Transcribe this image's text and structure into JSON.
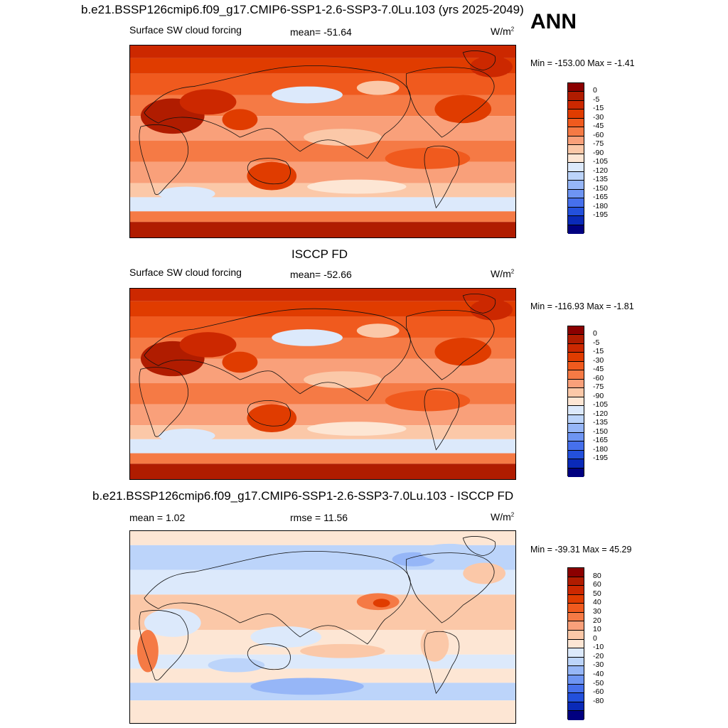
{
  "header": {
    "title": "b.e21.BSSP126cmip6.f09_g17.CMIP6-SSP1-2.6-SSP3-7.0Lu.103 (yrs 2025-2049)",
    "season": "ANN"
  },
  "panels": [
    {
      "title": "",
      "left_label": "Surface SW cloud forcing",
      "center_label": "mean= -51.64",
      "units": "W/m",
      "units_sup": "2",
      "minmax": "Min = -153.00 Max =  -1.41",
      "scale": "abs"
    },
    {
      "title": "ISCCP FD",
      "left_label": "Surface SW cloud forcing",
      "center_label": "mean= -52.66",
      "units": "W/m",
      "units_sup": "2",
      "minmax": "Min = -116.93 Max =  -1.81",
      "scale": "abs"
    },
    {
      "title": "b.e21.BSSP126cmip6.f09_g17.CMIP6-SSP1-2.6-SSP3-7.0Lu.103 - ISCCP FD",
      "left_label": "mean =   1.02",
      "center_label": "rmse =  11.56",
      "units": "W/m",
      "units_sup": "2",
      "minmax": "Min = -39.31 Max =  45.29",
      "scale": "diff"
    }
  ],
  "colorbars": {
    "abs": {
      "labels": [
        "0",
        "-5",
        "-15",
        "-30",
        "-45",
        "-60",
        "-75",
        "-90",
        "-105",
        "-120",
        "-135",
        "-150",
        "-165",
        "-180",
        "-195"
      ],
      "colors": [
        "#8b0000",
        "#b01c00",
        "#cc2800",
        "#e03c00",
        "#f05a1e",
        "#f57a45",
        "#f9a07a",
        "#fbc8a8",
        "#fde6d4",
        "#dce9fb",
        "#bcd4fa",
        "#96b6f7",
        "#6e95f3",
        "#4670ec",
        "#2350dc",
        "#0a2ab8",
        "#000080"
      ]
    },
    "diff": {
      "labels": [
        "80",
        "60",
        "50",
        "40",
        "30",
        "20",
        "10",
        "0",
        "-10",
        "-20",
        "-30",
        "-40",
        "-50",
        "-60",
        "-80"
      ],
      "colors": [
        "#8b0000",
        "#b01c00",
        "#cc2800",
        "#e03c00",
        "#f05a1e",
        "#f57a45",
        "#f9a07a",
        "#fbc8a8",
        "#fde6d4",
        "#dce9fb",
        "#bcd4fa",
        "#96b6f7",
        "#6e95f3",
        "#4670ec",
        "#2350dc",
        "#0a2ab8",
        "#000080"
      ]
    }
  }
}
